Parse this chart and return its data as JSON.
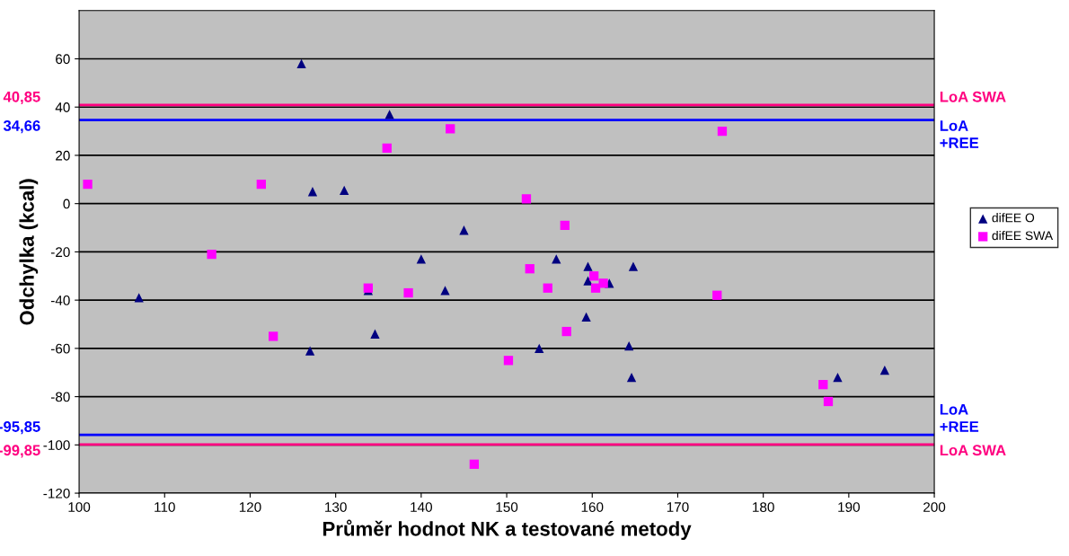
{
  "chart_data": {
    "type": "scatter",
    "xlabel": "Průměr hodnot NK a testované metody",
    "ylabel": "Odchylka (kcal)",
    "xlim": [
      100,
      200
    ],
    "xticks": [
      100,
      110,
      120,
      130,
      140,
      150,
      160,
      170,
      180,
      190,
      200
    ],
    "ylim": [
      -120,
      80
    ],
    "yticks": [
      -120,
      -100,
      -80,
      -60,
      -40,
      -20,
      0,
      20,
      40,
      60
    ],
    "grid": "y",
    "legend": "right",
    "series": [
      {
        "name": "difEE O",
        "color": "#000080",
        "marker": "triangle",
        "x": [
          126,
          136.3,
          127.3,
          131,
          145,
          140,
          107,
          133.8,
          142.8,
          134.6,
          127,
          153.8,
          155.8,
          159.5,
          159.5,
          162,
          164.8,
          159.3,
          164.3,
          164.6,
          188.7,
          194.2
        ],
        "values": [
          58,
          37,
          5,
          5.5,
          -11,
          -23,
          -39,
          -36,
          -36,
          -54,
          -61,
          -60,
          -23,
          -26,
          -32,
          -33,
          -26,
          -47,
          -59,
          -72,
          -72,
          -69
        ]
      },
      {
        "name": "difEE SWA",
        "color": "#ff00ff",
        "marker": "square",
        "x": [
          101,
          121.3,
          115.5,
          122.7,
          133.8,
          138.5,
          136,
          143.4,
          152.3,
          152.7,
          154.8,
          156.8,
          160.2,
          160.4,
          161.3,
          157,
          150.2,
          146.2,
          174.6,
          175.2,
          187,
          187.6
        ],
        "values": [
          8,
          8,
          -21,
          -55,
          -35,
          -37,
          23,
          31,
          2,
          -27,
          -35,
          -9,
          -30,
          -35,
          -33,
          -53,
          -65,
          -108,
          -38,
          30,
          -75,
          -82
        ]
      }
    ],
    "ref_lines": [
      {
        "axis": "y",
        "value": 40.85,
        "label": "LoA SWA",
        "color": "#ff0080"
      },
      {
        "axis": "y",
        "value": 34.66,
        "label": "LoA\n+REE",
        "color": "#0000ff"
      },
      {
        "axis": "y",
        "value": -95.85,
        "label": "LoA\n+REE",
        "color": "#0000ff"
      },
      {
        "axis": "y",
        "value": -99.85,
        "label": "LoA SWA",
        "color": "#ff0080"
      }
    ],
    "annotations": [
      "40,85",
      "34,66",
      "-95,85",
      "-99,85"
    ]
  }
}
